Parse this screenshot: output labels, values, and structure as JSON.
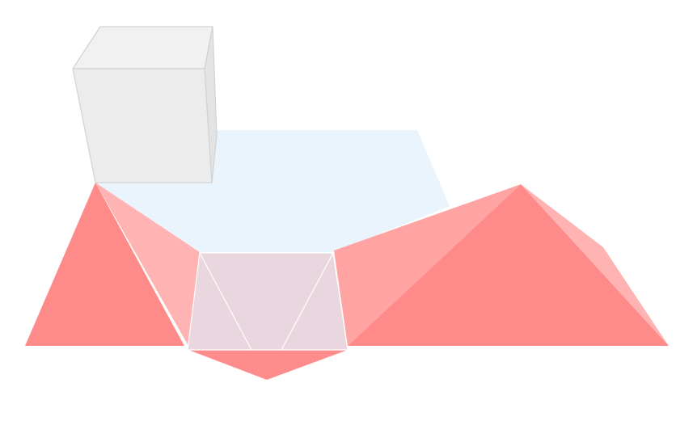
{
  "scene": {
    "background_color": "#ffffff",
    "colors": {
      "floor_plane": "#eaf4fd",
      "cube_front": "#ececec",
      "cube_side": "#e3e3e3",
      "cube_top": "#f1f1f1",
      "cube_edge": "#d2d2d2",
      "pyramid_dark": "#ff8a8a",
      "pyramid_light": "#ffb3b3",
      "pyramid_mid": "#ffa3a3",
      "panel_fill": "#ead6df",
      "panel_edge": "#ffffff",
      "apex_point": "#ff8c8c"
    }
  }
}
